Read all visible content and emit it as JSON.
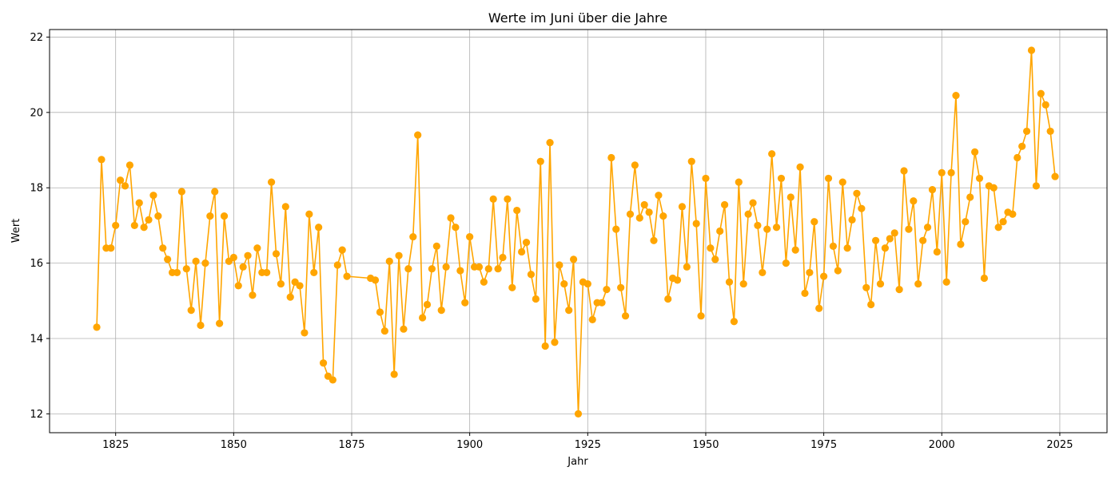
{
  "chart_data": {
    "type": "line",
    "title": "Werte im Juni über die Jahre",
    "xlabel": "Jahr",
    "ylabel": "Wert",
    "xlim": [
      1811,
      2035
    ],
    "ylim": [
      11.5,
      22.2
    ],
    "xticks": [
      1825,
      1850,
      1875,
      1900,
      1925,
      1950,
      1975,
      2000,
      2025
    ],
    "yticks": [
      12,
      14,
      16,
      18,
      20,
      22
    ],
    "grid": true,
    "color": "#ffa500",
    "series": [
      {
        "x": [
          1821,
          1822,
          1823,
          1824,
          1825,
          1826,
          1827,
          1828,
          1829,
          1830,
          1831,
          1832,
          1833,
          1834,
          1835,
          1836,
          1837,
          1838,
          1839,
          1840,
          1841,
          1842,
          1843,
          1844,
          1845,
          1846,
          1847,
          1848,
          1849,
          1850,
          1851,
          1852,
          1853,
          1854,
          1855,
          1856,
          1857,
          1858,
          1859,
          1860,
          1861,
          1862,
          1863,
          1864,
          1865,
          1866,
          1867,
          1868,
          1869,
          1870,
          1871,
          1872,
          1873,
          1874,
          1879,
          1880,
          1881,
          1882,
          1883,
          1884,
          1885,
          1886,
          1887,
          1888,
          1889,
          1890,
          1891,
          1892,
          1893,
          1894,
          1895,
          1896,
          1897,
          1898,
          1899,
          1900,
          1901,
          1902,
          1903,
          1904,
          1905,
          1906,
          1907,
          1908,
          1909,
          1910,
          1911,
          1912,
          1913,
          1914,
          1915,
          1916,
          1917,
          1918,
          1919,
          1920,
          1921,
          1922,
          1923,
          1924,
          1925,
          1926,
          1927,
          1928,
          1929,
          1930,
          1931,
          1932,
          1933,
          1934,
          1935,
          1936,
          1937,
          1938,
          1939,
          1940,
          1941,
          1942,
          1943,
          1944,
          1945,
          1946,
          1947,
          1948,
          1949,
          1950,
          1951,
          1952,
          1953,
          1954,
          1955,
          1956,
          1957,
          1958,
          1959,
          1960,
          1961,
          1962,
          1963,
          1964,
          1965,
          1966,
          1967,
          1968,
          1969,
          1970,
          1971,
          1972,
          1973,
          1974,
          1975,
          1976,
          1977,
          1978,
          1979,
          1980,
          1981,
          1982,
          1983,
          1984,
          1985,
          1986,
          1987,
          1988,
          1989,
          1990,
          1991,
          1992,
          1993,
          1994,
          1995,
          1996,
          1997,
          1998,
          1999,
          2000,
          2001,
          2002,
          2003,
          2004,
          2005,
          2006,
          2007,
          2008,
          2009,
          2010,
          2011,
          2012,
          2013,
          2014,
          2015,
          2016,
          2017,
          2018,
          2019,
          2020,
          2021,
          2022,
          2023,
          2024
        ],
        "y": [
          14.3,
          18.75,
          16.4,
          16.4,
          17.0,
          18.2,
          18.05,
          18.6,
          17.0,
          17.6,
          16.95,
          17.15,
          17.8,
          17.25,
          16.4,
          16.1,
          15.75,
          15.75,
          17.9,
          15.85,
          14.75,
          16.05,
          14.35,
          16.0,
          17.25,
          17.9,
          14.4,
          17.25,
          16.05,
          16.15,
          15.4,
          15.9,
          16.2,
          15.15,
          16.4,
          15.75,
          15.75,
          18.15,
          16.25,
          15.45,
          17.5,
          15.1,
          15.5,
          15.4,
          14.15,
          17.3,
          15.75,
          16.95,
          13.35,
          13.0,
          12.9,
          15.95,
          16.35,
          15.65,
          15.6,
          15.55,
          14.7,
          14.2,
          16.05,
          13.05,
          16.2,
          14.25,
          15.85,
          16.7,
          19.4,
          14.55,
          14.9,
          15.85,
          16.45,
          14.75,
          15.9,
          17.2,
          16.95,
          15.8,
          14.95,
          16.7,
          15.9,
          15.9,
          15.5,
          15.85,
          17.7,
          15.85,
          16.15,
          17.7,
          15.35,
          17.4,
          16.3,
          16.55,
          15.7,
          15.05,
          18.7,
          13.8,
          19.2,
          13.9,
          15.95,
          15.45,
          14.75,
          16.1,
          12.0,
          15.5,
          15.45,
          14.5,
          14.95,
          14.95,
          15.3,
          18.8,
          16.9,
          15.35,
          14.6,
          17.3,
          18.6,
          17.2,
          17.55,
          17.35,
          16.6,
          17.8,
          17.25,
          15.05,
          15.6,
          15.55,
          17.5,
          15.9,
          18.7,
          17.05,
          14.6,
          18.25,
          16.4,
          16.1,
          16.85,
          17.55,
          15.5,
          14.45,
          18.15,
          15.45,
          17.3,
          17.6,
          17.0,
          15.75,
          16.9,
          18.9,
          16.95,
          18.25,
          16.0,
          17.75,
          16.35,
          18.55,
          15.2,
          15.75,
          17.1,
          14.8,
          15.65,
          18.25,
          16.45,
          15.8,
          18.15,
          16.4,
          17.15,
          17.85,
          17.45,
          15.35,
          14.9,
          16.6,
          15.45,
          16.4,
          16.65,
          16.8,
          15.3,
          18.45,
          16.9,
          17.65,
          15.45,
          16.6,
          16.95,
          17.95,
          16.3,
          18.4,
          15.5,
          18.4,
          20.45,
          16.5,
          17.1,
          17.75,
          18.95,
          18.25,
          15.6,
          18.05,
          18.0,
          16.95,
          17.1,
          17.35,
          17.3,
          18.8,
          19.1,
          19.5,
          21.65,
          18.05,
          20.5,
          20.2,
          19.5,
          18.3
        ]
      }
    ]
  }
}
